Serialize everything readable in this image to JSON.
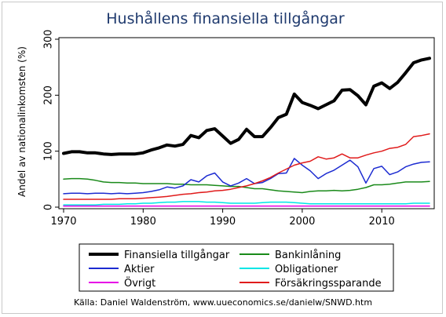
{
  "chart_data": {
    "type": "line",
    "title": "Hushållens finansiella tillgångar",
    "xlabel": "",
    "ylabel": "Andel av nationalinkomsten (%)",
    "xlim": [
      1970,
      2016
    ],
    "ylim": [
      0,
      300
    ],
    "xticks": [
      1970,
      1980,
      1990,
      2000,
      2010
    ],
    "yticks": [
      0,
      100,
      200,
      300
    ],
    "x": [
      1970,
      1971,
      1972,
      1973,
      1974,
      1975,
      1976,
      1977,
      1978,
      1979,
      1980,
      1981,
      1982,
      1983,
      1984,
      1985,
      1986,
      1987,
      1988,
      1989,
      1990,
      1991,
      1992,
      1993,
      1994,
      1995,
      1996,
      1997,
      1998,
      1999,
      2000,
      2001,
      2002,
      2003,
      2004,
      2005,
      2006,
      2007,
      2008,
      2009,
      2010,
      2011,
      2012,
      2013,
      2014,
      2015,
      2016
    ],
    "grid": false,
    "legend_position": "bottom",
    "series": [
      {
        "name": "Finansiella tillgångar",
        "color": "#000000",
        "width": 4,
        "values": [
          96,
          99,
          99,
          97,
          97,
          95,
          94,
          95,
          95,
          95,
          97,
          102,
          106,
          111,
          109,
          112,
          128,
          124,
          137,
          140,
          127,
          114,
          121,
          139,
          126,
          126,
          142,
          160,
          166,
          202,
          187,
          182,
          176,
          183,
          190,
          209,
          210,
          199,
          183,
          216,
          222,
          212,
          223,
          240,
          258,
          263,
          266
        ]
      },
      {
        "name": "Bankinlåning",
        "color": "#1a8a1a",
        "width": 1.5,
        "values": [
          50,
          51,
          51,
          50,
          48,
          45,
          44,
          44,
          43,
          43,
          42,
          42,
          42,
          42,
          41,
          41,
          40,
          40,
          40,
          39,
          38,
          37,
          37,
          35,
          33,
          33,
          31,
          29,
          28,
          27,
          26,
          28,
          29,
          29,
          30,
          29,
          30,
          32,
          35,
          40,
          40,
          41,
          43,
          45,
          45,
          45,
          46
        ]
      },
      {
        "name": "Aktier",
        "color": "#1c2bd1",
        "width": 1.5,
        "values": [
          24,
          25,
          25,
          24,
          25,
          25,
          24,
          25,
          24,
          25,
          26,
          28,
          31,
          36,
          34,
          38,
          49,
          45,
          56,
          61,
          45,
          38,
          43,
          51,
          42,
          44,
          51,
          60,
          61,
          87,
          75,
          65,
          51,
          60,
          66,
          75,
          84,
          72,
          43,
          69,
          73,
          58,
          63,
          72,
          77,
          80,
          81
        ]
      },
      {
        "name": "Obligationer",
        "color": "#00e6e6",
        "width": 1.5,
        "values": [
          4,
          4,
          4,
          4,
          4,
          5,
          5,
          5,
          6,
          6,
          7,
          7,
          8,
          9,
          9,
          10,
          10,
          10,
          9,
          9,
          8,
          7,
          7,
          7,
          7,
          8,
          9,
          9,
          9,
          8,
          7,
          6,
          6,
          6,
          6,
          6,
          6,
          6,
          6,
          6,
          6,
          6,
          6,
          6,
          7,
          7,
          7
        ]
      },
      {
        "name": "Övrigt",
        "color": "#e600e6",
        "width": 1.5,
        "values": [
          2,
          2,
          2,
          2,
          2,
          2,
          2,
          2,
          2,
          2,
          2,
          2,
          2,
          2,
          2,
          2,
          2,
          2,
          2,
          2,
          2,
          2,
          2,
          2,
          2,
          2,
          2,
          2,
          2,
          2,
          2,
          2,
          2,
          2,
          2,
          2,
          2,
          2,
          2,
          2,
          2,
          2,
          2,
          2,
          2,
          2,
          2
        ]
      },
      {
        "name": "Försäkringssparande",
        "color": "#e01b1b",
        "width": 1.5,
        "values": [
          14,
          14,
          14,
          14,
          14,
          14,
          14,
          15,
          15,
          15,
          16,
          17,
          18,
          19,
          21,
          23,
          24,
          26,
          27,
          29,
          30,
          32,
          35,
          38,
          42,
          47,
          53,
          61,
          68,
          75,
          79,
          82,
          90,
          86,
          88,
          95,
          88,
          88,
          93,
          97,
          100,
          105,
          107,
          112,
          126,
          128,
          131
        ]
      }
    ],
    "legend_order": [
      0,
      1,
      2,
      3,
      4,
      5
    ]
  },
  "source_text": "Källa: Daniel Waldenström, www.uueconomics.se/danielw/SNWD.htm"
}
